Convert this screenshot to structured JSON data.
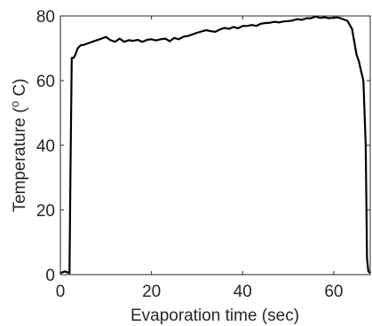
{
  "chart_data": {
    "type": "line",
    "title": "",
    "xlabel": "Evaporation time (sec)",
    "ylabel": "Temperature (",
    "ylabel_superscript": "o",
    "ylabel_suffix": " C)",
    "xlim": [
      0,
      68
    ],
    "ylim": [
      0,
      80
    ],
    "xticks": [
      0,
      20,
      40,
      60
    ],
    "yticks": [
      0,
      20,
      40,
      60,
      80
    ],
    "grid": false,
    "line_color": "#000000",
    "series": [
      {
        "x": [
          0,
          1,
          2,
          2.2,
          2.5,
          2.9,
          3.3,
          3.8,
          4.5,
          5,
          6,
          7,
          8,
          9,
          10,
          11,
          12,
          13,
          14,
          15,
          16,
          17,
          18,
          19,
          20,
          21,
          22,
          23,
          24,
          25,
          26,
          27,
          28,
          29,
          30,
          31,
          32,
          33,
          34,
          35,
          36,
          37,
          38,
          39,
          40,
          41,
          42,
          43,
          44,
          45,
          46,
          47,
          48,
          49,
          50,
          51,
          52,
          53,
          54,
          55,
          56,
          57,
          58,
          59,
          60,
          61,
          62,
          63,
          64,
          65,
          65.5,
          66,
          66.5,
          67,
          67.3,
          67.6,
          68
        ],
        "y": [
          0.5,
          1,
          0.5,
          30,
          67,
          67,
          68,
          70,
          71,
          71,
          71.5,
          72,
          72.5,
          73,
          73.5,
          72.5,
          72,
          73,
          72,
          72.5,
          72.3,
          72.6,
          72,
          72.6,
          72.8,
          72.4,
          72.8,
          73,
          72.2,
          73.2,
          72.8,
          73.6,
          73.8,
          74.3,
          74.8,
          75.2,
          75.6,
          75.3,
          75.1,
          75.8,
          76.3,
          76,
          76.6,
          76.2,
          76.9,
          76.9,
          77.2,
          76.9,
          77.6,
          77.8,
          77.9,
          78.2,
          78,
          78.3,
          78.4,
          78.6,
          79,
          78.8,
          79.3,
          79.3,
          79.8,
          79.4,
          79.6,
          79.3,
          79.5,
          79.5,
          79,
          78.5,
          76,
          68,
          66,
          63,
          60,
          40,
          5,
          1,
          0.5
        ]
      }
    ]
  }
}
